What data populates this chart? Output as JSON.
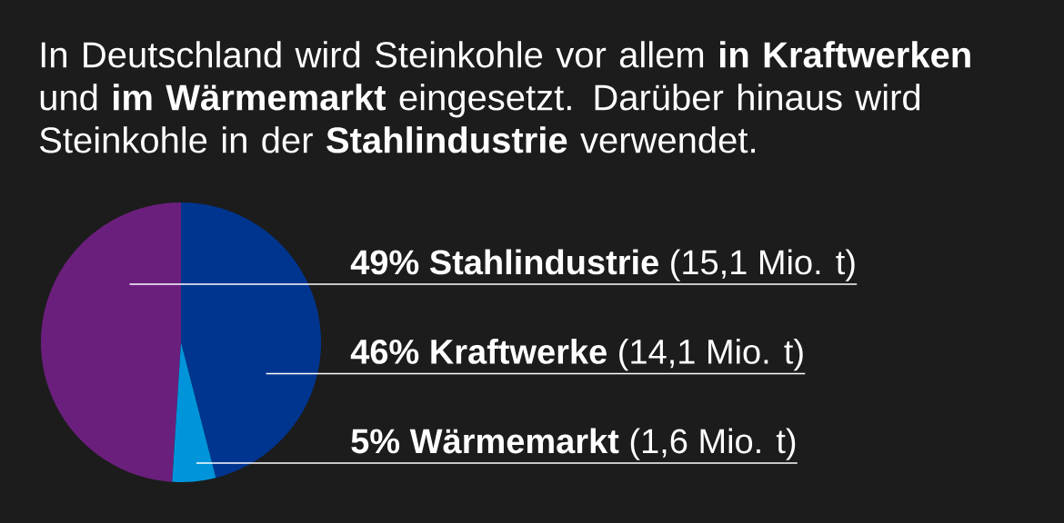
{
  "chart_data": {
    "type": "pie",
    "title": "In Deutschland wird Steinkohle vor allem **in Kraftwerken** und **im Wärmemarkt** eingesetzt. Darüber hinaus wird Steinkohle in der **Stahlindustrie** verwendet.",
    "categories": [
      "**Stahlindustrie** (15,1 Mio. t)",
      "**Kraftwerke** (14,1 Mio. t)",
      "**Wärmemarkt** (1,6 Mio. t)"
    ],
    "values": [
      49,
      46,
      5
    ],
    "value_labels": [
      "49%",
      "46%",
      "5%"
    ],
    "colors": [
      "#6b1f7c",
      "#00358f",
      "#0095db"
    ]
  }
}
